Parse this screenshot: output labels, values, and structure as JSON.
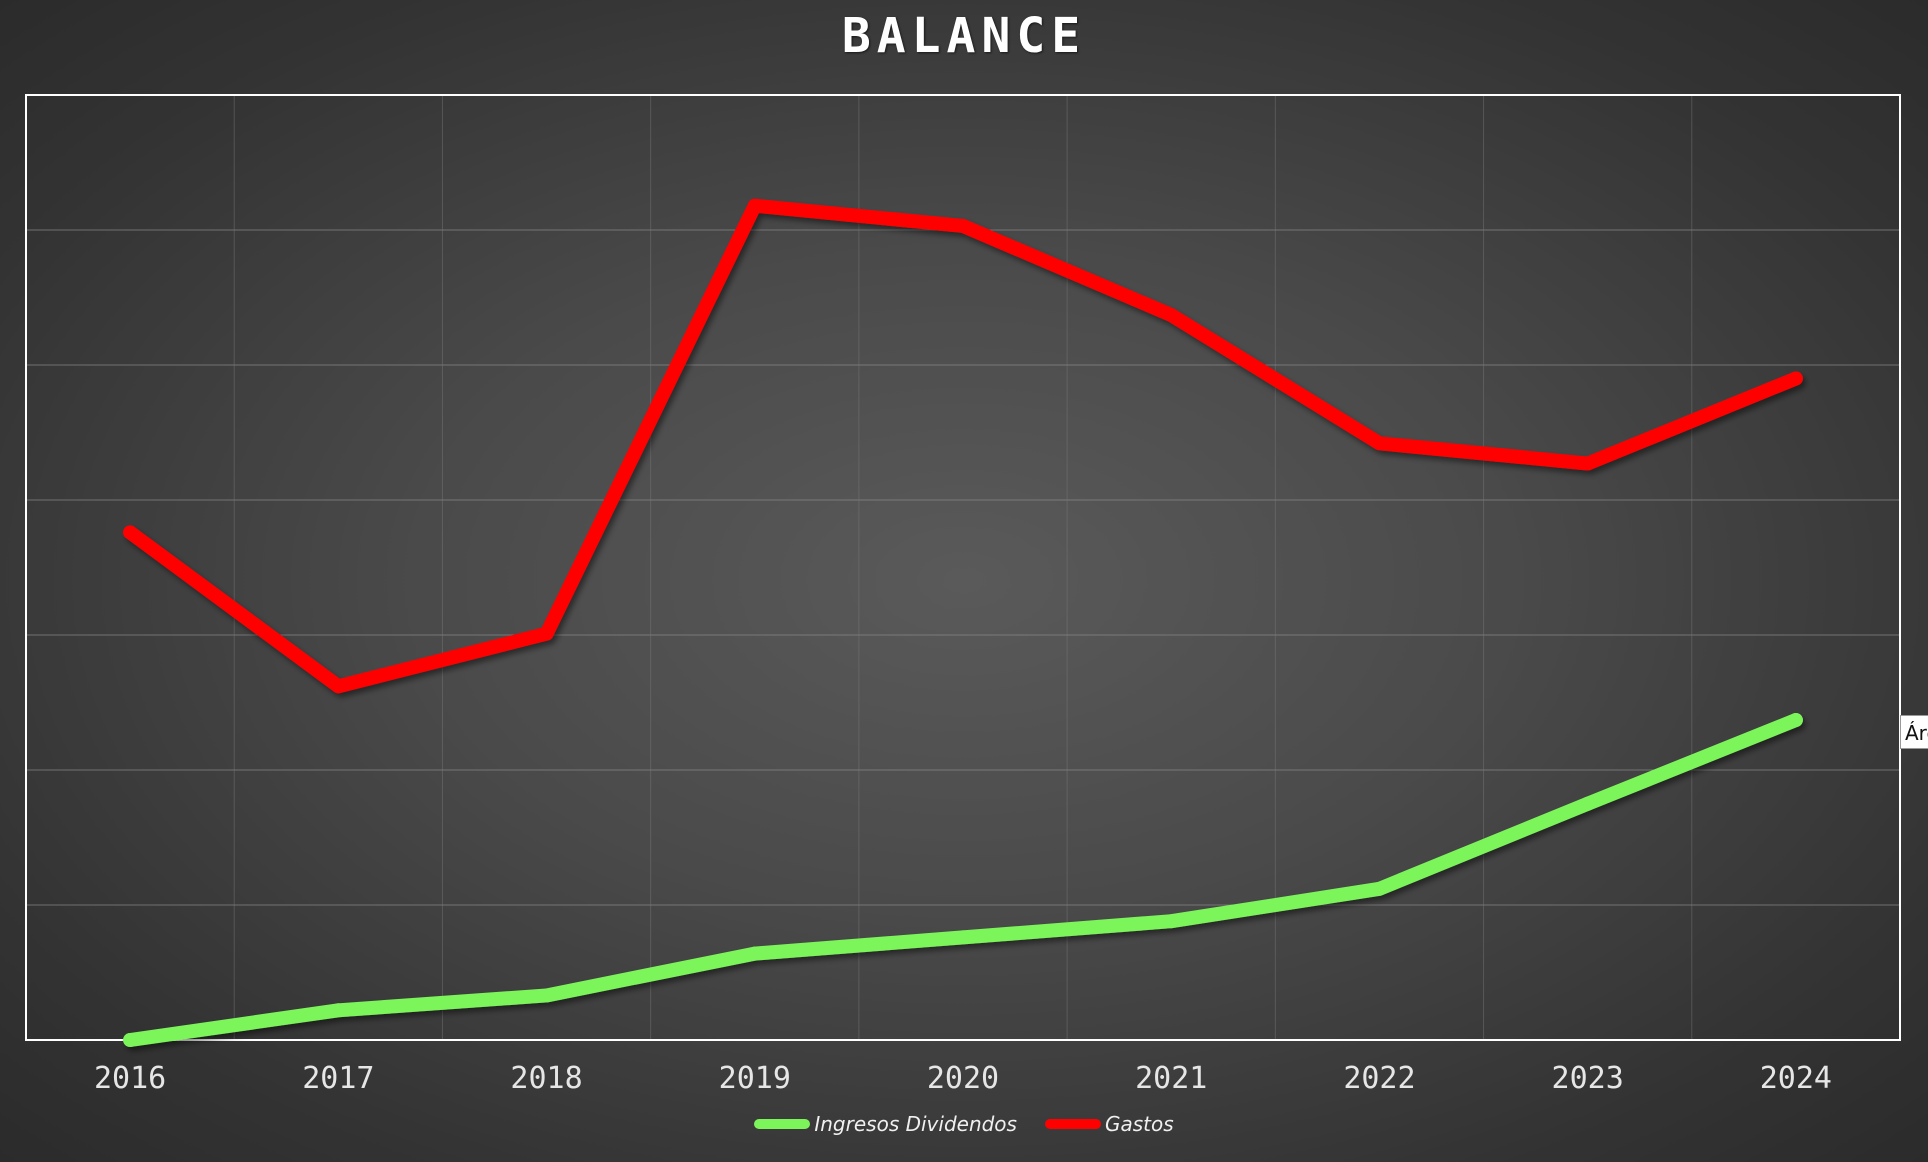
{
  "chart_data": {
    "type": "line",
    "title": "BALANCE",
    "categories": [
      "2016",
      "2017",
      "2018",
      "2019",
      "2020",
      "2021",
      "2022",
      "2023",
      "2024"
    ],
    "series": [
      {
        "name": "Ingresos Dividendos",
        "color": "#7cf55a",
        "values": [
          0,
          0.22,
          0.33,
          0.64,
          0.76,
          0.88,
          1.12,
          1.75,
          2.37
        ]
      },
      {
        "name": "Gastos",
        "color": "#ff0000",
        "values": [
          3.76,
          2.62,
          3.01,
          6.18,
          6.03,
          5.37,
          4.42,
          4.27,
          4.9
        ]
      }
    ],
    "ylim": [
      0,
      7
    ],
    "y_gridlines": 7,
    "grid": true,
    "legend": "bottom",
    "xlabel": "",
    "ylabel": ""
  },
  "side_tag": {
    "text": "Áre"
  }
}
